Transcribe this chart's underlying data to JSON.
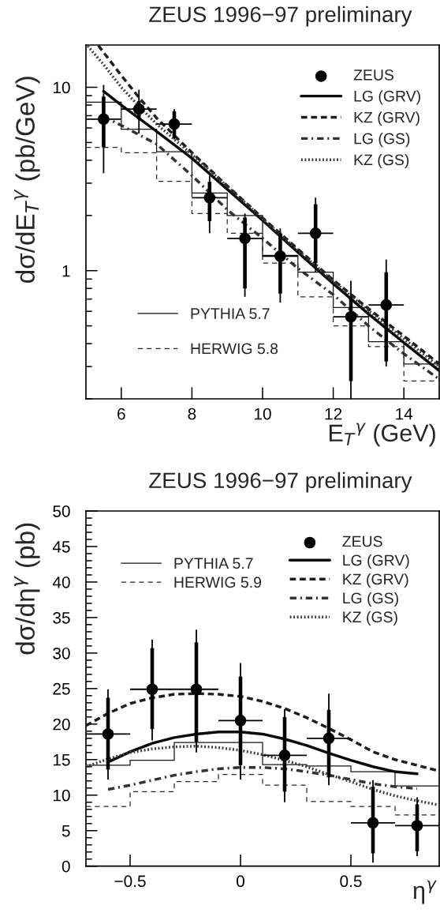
{
  "chart_data": [
    {
      "type": "line",
      "title": "ZEUS 1996−97 preliminary",
      "xlabel": "E$_{T}$$^{γ}$ (GeV)",
      "ylabel": "dσ/dE$_{T}$$^{γ}$ (pb/GeV)",
      "log": "y",
      "xlim": [
        5,
        15
      ],
      "ylim": [
        0.2,
        17
      ],
      "xticks": [
        6,
        8,
        10,
        12,
        14
      ],
      "yticks": [
        {
          "value": 0.2,
          "label": null
        },
        {
          "value": 0.3,
          "label": null
        },
        {
          "value": 0.4,
          "label": null
        },
        {
          "value": 0.5,
          "label": null
        },
        {
          "value": 0.6,
          "label": null
        },
        {
          "value": 0.7,
          "label": null
        },
        {
          "value": 0.8,
          "label": null
        },
        {
          "value": 0.9,
          "label": null
        },
        1,
        {
          "value": 2,
          "label": null
        },
        {
          "value": 3,
          "label": null
        },
        {
          "value": 4,
          "label": null
        },
        {
          "value": 5,
          "label": null
        },
        {
          "value": 6,
          "label": null
        },
        {
          "value": 7,
          "label": null
        },
        {
          "value": 8,
          "label": null
        },
        {
          "value": 9,
          "label": null
        },
        10
      ],
      "legend": [
        "top right",
        "bottom left"
      ],
      "series": [
        {
          "name": "ZEUS",
          "type": "scatter",
          "marker": "circle",
          "color": "#000000",
          "x": [
            5.5,
            6.5,
            7.5,
            8.5,
            9.5,
            10.5,
            11.5,
            12.5,
            13.5
          ],
          "values": [
            6.7,
            7.6,
            6.3,
            2.5,
            1.5,
            1.2,
            1.6,
            0.56,
            0.65
          ],
          "xerrors": [
            0.5,
            0.5,
            0.5,
            0.5,
            0.5,
            0.5,
            0.5,
            0.5,
            0.5
          ],
          "errors": [
            [
              3.4,
              10.3
            ],
            [
              5.6,
              9.7
            ],
            [
              5.2,
              7.6
            ],
            [
              1.6,
              3.3
            ],
            [
              0.72,
              2.05
            ],
            [
              0.67,
              1.7
            ],
            [
              0.98,
              2.5
            ],
            [
              0.2,
              0.88
            ],
            [
              0.3,
              1.15
            ]
          ]
        },
        {
          "type": "bar",
          "color": "#000000",
          "x": [
            5.5,
            6.5,
            7.5,
            8.5,
            9.5,
            10.5,
            11.5,
            12.5,
            13.5
          ],
          "base": [
            4.7,
            6.7,
            5.3,
            1.86,
            0.8,
            0.75,
            1.1,
            0.25,
            0.32
          ],
          "values": [
            4.2,
            1.7,
            2.1,
            1.19,
            1.15,
            0.85,
            1.2,
            0.47,
            0.66
          ]
        },
        {
          "name": "LG (GRV)",
          "line_style": "solid",
          "color": "#0a0a0a",
          "x": [
            5.5,
            6,
            7,
            8,
            9,
            10,
            11,
            12,
            13,
            14,
            15
          ],
          "values": [
            9.5,
            8.0,
            5.75,
            4.1,
            2.78,
            1.88,
            1.26,
            0.85,
            0.58,
            0.405,
            0.285
          ]
        },
        {
          "name": "KZ (GRV)",
          "line_style": "dashed",
          "color": "#1e1e1e",
          "x": [
            5.35,
            5.5,
            6,
            6.5,
            7,
            8,
            9,
            10,
            11,
            12,
            13,
            14,
            15
          ],
          "values": [
            16.9,
            15.5,
            11.6,
            8.8,
            6.8,
            4.4,
            2.9,
            1.94,
            1.31,
            0.89,
            0.62,
            0.44,
            0.31
          ]
        },
        {
          "name": "LG (GS)",
          "line_style": "dashdot",
          "color": "#323232",
          "x": [
            5.5,
            6,
            7,
            8,
            9,
            10,
            11,
            12,
            13,
            14,
            15
          ],
          "values": [
            6.9,
            6.2,
            4.9,
            3.3,
            2.15,
            1.5,
            1.03,
            0.74,
            0.5,
            0.352,
            0.256
          ]
        },
        {
          "name": "KZ (GS)",
          "line_style": "dotted",
          "color": "#3c3c3c",
          "x": [
            5.05,
            5.5,
            6,
            6.5,
            7,
            8,
            9,
            10,
            11,
            12,
            13,
            14,
            15
          ],
          "values": [
            16.8,
            13.3,
            10.0,
            7.9,
            6.3,
            4.3,
            2.88,
            1.92,
            1.29,
            0.875,
            0.605,
            0.425,
            0.3
          ]
        },
        {
          "name": "PYTHIA 5.7",
          "type": "histogram",
          "line_style": "solid",
          "color": "#141414",
          "bins": [
            5,
            6,
            7,
            8,
            9,
            10,
            11,
            12,
            13,
            14,
            15
          ],
          "values": [
            8.3,
            5.9,
            4.45,
            2.65,
            2.0,
            1.21,
            0.98,
            0.63,
            0.41,
            0.31
          ]
        },
        {
          "name": "HERWIG 5.8",
          "type": "histogram",
          "line_style": "dashed",
          "color": "#282828",
          "bins": [
            5,
            6,
            7,
            8,
            9,
            10,
            11,
            12,
            13,
            14,
            15
          ],
          "values": [
            4.7,
            4.4,
            3.07,
            2.05,
            1.6,
            1.1,
            0.72,
            0.5,
            0.385,
            0.25
          ]
        }
      ]
    },
    {
      "type": "line",
      "title": "ZEUS 1996−97 preliminary",
      "xlabel": "η$^{γ}$",
      "ylabel": "dσ/dη$^{γ}$ (pb)",
      "xlim": [
        -0.7,
        0.9
      ],
      "ylim": [
        0,
        50
      ],
      "xticks": [
        {
          "value": -0.5,
          "label": "−0.5"
        },
        0,
        0.5
      ],
      "yticks": [
        0,
        {
          "value": 1,
          "label": null
        },
        {
          "value": 2,
          "label": null
        },
        {
          "value": 3,
          "label": null
        },
        {
          "value": 4,
          "label": null
        },
        5,
        {
          "value": 6,
          "label": null
        },
        {
          "value": 7,
          "label": null
        },
        {
          "value": 8,
          "label": null
        },
        {
          "value": 9,
          "label": null
        },
        10,
        {
          "value": 11,
          "label": null
        },
        {
          "value": 12,
          "label": null
        },
        {
          "value": 13,
          "label": null
        },
        {
          "value": 14,
          "label": null
        },
        15,
        {
          "value": 16,
          "label": null
        },
        {
          "value": 17,
          "label": null
        },
        {
          "value": 18,
          "label": null
        },
        {
          "value": 19,
          "label": null
        },
        20,
        {
          "value": 21,
          "label": null
        },
        {
          "value": 22,
          "label": null
        },
        {
          "value": 23,
          "label": null
        },
        {
          "value": 24,
          "label": null
        },
        25,
        {
          "value": 26,
          "label": null
        },
        {
          "value": 27,
          "label": null
        },
        {
          "value": 28,
          "label": null
        },
        {
          "value": 29,
          "label": null
        },
        30,
        {
          "value": 31,
          "label": null
        },
        {
          "value": 32,
          "label": null
        },
        {
          "value": 33,
          "label": null
        },
        {
          "value": 34,
          "label": null
        },
        35,
        {
          "value": 36,
          "label": null
        },
        {
          "value": 37,
          "label": null
        },
        {
          "value": 38,
          "label": null
        },
        {
          "value": 39,
          "label": null
        },
        40,
        {
          "value": 41,
          "label": null
        },
        {
          "value": 42,
          "label": null
        },
        {
          "value": 43,
          "label": null
        },
        {
          "value": 44,
          "label": null
        },
        45,
        {
          "value": 46,
          "label": null
        },
        {
          "value": 47,
          "label": null
        },
        {
          "value": 48,
          "label": null
        },
        {
          "value": 49,
          "label": null
        },
        50
      ],
      "legend": [
        "top right",
        "top left"
      ],
      "series": [
        {
          "name": "ZEUS",
          "type": "scatter",
          "marker": "circle",
          "color": "#000000",
          "x": [
            -0.6,
            -0.4,
            -0.2,
            0,
            0.2,
            0.4,
            0.6,
            0.8
          ],
          "values": [
            18.6,
            24.9,
            24.9,
            20.5,
            15.6,
            18.0,
            6.1,
            5.7
          ],
          "xerrors": [
            0.1,
            0.1,
            0.1,
            0.1,
            0.1,
            0.1,
            0.1,
            0.1
          ],
          "errors": [
            [
              12.2,
              24.9
            ],
            [
              17.7,
              31.9
            ],
            [
              16.0,
              33.3
            ],
            [
              12.2,
              28.6
            ],
            [
              9.0,
              22.1
            ],
            [
              11.4,
              24.3
            ],
            [
              0.5,
              12.1
            ],
            [
              1.4,
              9.7
            ]
          ]
        },
        {
          "type": "bar",
          "color": "#000000",
          "x": [
            -0.6,
            -0.4,
            -0.2,
            0,
            0.2,
            0.4,
            0.6,
            0.8
          ],
          "base": [
            13.6,
            19.3,
            17.5,
            14.2,
            10.5,
            12.5,
            1.8,
            2.1
          ],
          "values": [
            10.1,
            11.4,
            14.0,
            12.5,
            10.5,
            9.5,
            9.4,
            6.6
          ]
        },
        {
          "name": "LG (GRV)",
          "line_style": "solid",
          "color": "#0a0a0a",
          "x": [
            -0.59,
            -0.5,
            -0.4,
            -0.3,
            -0.2,
            -0.1,
            0,
            0.1,
            0.2,
            0.3,
            0.4,
            0.5,
            0.6,
            0.7,
            0.8
          ],
          "values": [
            14.8,
            16.1,
            17.3,
            18.1,
            18.6,
            18.9,
            18.9,
            18.6,
            17.9,
            17.0,
            15.9,
            14.9,
            14.0,
            13.3,
            13.0
          ]
        },
        {
          "name": "KZ (GRV)",
          "line_style": "dashed",
          "color": "#1e1e1e",
          "x": [
            -0.7,
            -0.6,
            -0.5,
            -0.4,
            -0.3,
            -0.2,
            -0.1,
            0,
            0.1,
            0.2,
            0.3,
            0.4,
            0.5,
            0.6,
            0.7,
            0.8,
            0.9
          ],
          "values": [
            19.8,
            21.5,
            22.9,
            23.7,
            24.2,
            24.3,
            24.2,
            23.9,
            23.2,
            22.2,
            20.9,
            19.4,
            17.8,
            16.1,
            15.0,
            14.2,
            13.4
          ]
        },
        {
          "name": "LG (GS)",
          "line_style": "dashdot",
          "color": "#323232",
          "x": [
            -0.6,
            -0.5,
            -0.4,
            -0.3,
            -0.2,
            -0.1,
            0,
            0.1,
            0.2,
            0.3,
            0.4,
            0.5,
            0.6,
            0.7,
            0.8
          ],
          "values": [
            10.8,
            11.4,
            12.1,
            12.8,
            13.3,
            13.7,
            13.9,
            13.9,
            13.7,
            13.3,
            12.8,
            12.2,
            11.6,
            11.2,
            10.9
          ]
        },
        {
          "name": "KZ (GS)",
          "line_style": "dotted",
          "color": "#3c3c3c",
          "x": [
            -0.7,
            -0.6,
            -0.5,
            -0.4,
            -0.3,
            -0.2,
            -0.1,
            0,
            0.1,
            0.2,
            0.3,
            0.4,
            0.5,
            0.6,
            0.7,
            0.8,
            0.9
          ],
          "values": [
            14.0,
            15.1,
            16.0,
            16.5,
            16.8,
            16.9,
            16.7,
            16.3,
            15.7,
            14.9,
            14.0,
            12.9,
            11.9,
            10.8,
            9.9,
            9.2,
            8.6
          ]
        },
        {
          "name": "PYTHIA 5.7",
          "type": "histogram",
          "line_style": "solid",
          "color": "#141414",
          "bins": [
            -0.7,
            -0.5,
            -0.3,
            -0.1,
            0.1,
            0.3,
            0.5,
            0.7,
            0.9
          ],
          "values": [
            14.2,
            14.9,
            17.4,
            17.4,
            14.3,
            14.1,
            13.3,
            11.3
          ]
        },
        {
          "name": "HERWIG 5.9",
          "type": "histogram",
          "line_style": "dashed",
          "color": "#282828",
          "bins": [
            -0.7,
            -0.5,
            -0.3,
            -0.1,
            0.1,
            0.3,
            0.5,
            0.7,
            0.9
          ],
          "values": [
            8.4,
            10.5,
            11.9,
            12.9,
            11.4,
            9.1,
            8.4,
            7.2
          ]
        }
      ]
    }
  ]
}
